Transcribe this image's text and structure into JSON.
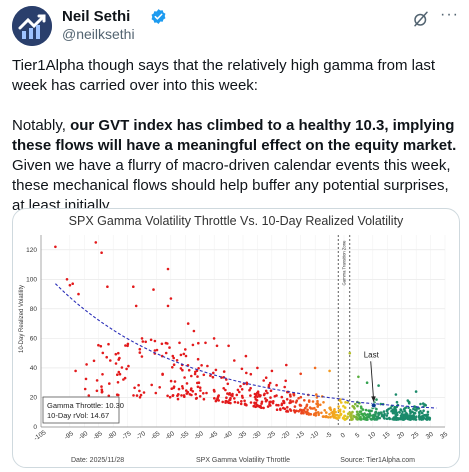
{
  "author": {
    "name": "Neil Sethi",
    "handle": "@neilksethi",
    "avatar_icon": "sa-logo-icon",
    "verified_icon": "verified-badge-icon"
  },
  "header_actions": {
    "grok_icon": "grok-icon",
    "more_icon": "more-icon",
    "more_label": "···"
  },
  "tweet": {
    "para1": "Tier1Alpha though says that the relatively high gamma from last week has carried over into this week:",
    "para2_prefix": "Notably, ",
    "para2_bold": "our GVT index has climbed to a healthy 10.3, implying these flows will have a meaningful effect on the equity market.",
    "para2_suffix": " Given we have a flurry of macro-driven calendar events this week, these mechanical flows should help buffer any potential surprises, at least initially."
  },
  "chart_data": {
    "type": "scatter",
    "title": "SPX Gamma Volatility Throttle Vs. 10-Day Realized Volatility",
    "xlabel": "SPX Gamma Volatility Throttle",
    "ylabel": "10-Day Realized Volatility",
    "xlim": [
      -105,
      35
    ],
    "ylim": [
      0,
      130
    ],
    "x_ticks": [
      -105,
      -95,
      -90,
      -85,
      -80,
      -75,
      -70,
      -65,
      -60,
      -55,
      -50,
      -45,
      -40,
      -35,
      -30,
      -25,
      -20,
      -15,
      -10,
      -5,
      0,
      5,
      10,
      15,
      20,
      25,
      30,
      35
    ],
    "y_ticks": [
      0,
      20,
      40,
      60,
      80,
      100,
      120
    ],
    "zone_label": "Gamma Transition Zone",
    "zone_x": [
      -2,
      2
    ],
    "last_label": "Last",
    "last_point": {
      "x": 10.3,
      "y": 14.67
    },
    "infobox": {
      "line1": "Gamma Throttle: 10.30",
      "line2": "10-Day rVol: 14.67"
    },
    "footer_date": "Date: 2025/11/28",
    "footer_source": "Source: Tier1Alpha.com",
    "colors": {
      "negative": "#e31a1c",
      "mid": "#f5c518",
      "positive": "#1b8a6b",
      "trend": "#2b2fb8"
    },
    "outliers": [
      [
        -100,
        122
      ],
      [
        -96,
        100
      ],
      [
        -95,
        96
      ],
      [
        -94,
        97
      ],
      [
        -93,
        38
      ],
      [
        -92,
        90
      ],
      [
        -86,
        125
      ],
      [
        -84,
        118
      ],
      [
        -82,
        95
      ],
      [
        -81,
        45
      ],
      [
        -79,
        43
      ],
      [
        -75,
        55
      ],
      [
        -73,
        95
      ],
      [
        -72,
        82
      ],
      [
        -70,
        60
      ],
      [
        -66,
        93
      ],
      [
        -63,
        48
      ],
      [
        -61,
        107
      ],
      [
        -61,
        82
      ],
      [
        -60,
        87
      ],
      [
        -57,
        57
      ],
      [
        -54,
        70
      ],
      [
        -52,
        65
      ],
      [
        -48,
        57
      ],
      [
        -45,
        60
      ],
      [
        -44,
        55
      ],
      [
        -40,
        55
      ],
      [
        -38,
        45
      ],
      [
        -34,
        48
      ],
      [
        -30,
        40
      ],
      [
        -25,
        38
      ],
      [
        -20,
        42
      ],
      [
        -15,
        36
      ],
      [
        -10,
        40
      ],
      [
        -5,
        38
      ],
      [
        2,
        50
      ],
      [
        5,
        34
      ],
      [
        8,
        30
      ],
      [
        12,
        28
      ],
      [
        18,
        22
      ],
      [
        25,
        24
      ]
    ]
  }
}
